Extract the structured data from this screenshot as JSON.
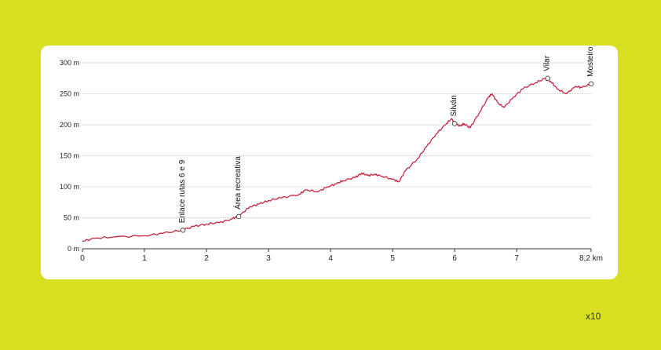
{
  "chart_data": {
    "type": "line",
    "title": "",
    "xlabel": "",
    "ylabel": "",
    "xlim": [
      0,
      8.2
    ],
    "ylim": [
      0,
      300
    ],
    "y_ticks": [
      {
        "value": 0,
        "label": "0 m"
      },
      {
        "value": 50,
        "label": "50 m"
      },
      {
        "value": 100,
        "label": "100 m"
      },
      {
        "value": 150,
        "label": "150 m"
      },
      {
        "value": 200,
        "label": "200 m"
      },
      {
        "value": 250,
        "label": "250 m"
      },
      {
        "value": 300,
        "label": "300 m"
      }
    ],
    "x_ticks": [
      {
        "value": 0,
        "label": "0"
      },
      {
        "value": 1,
        "label": "1"
      },
      {
        "value": 2,
        "label": "2"
      },
      {
        "value": 3,
        "label": "3"
      },
      {
        "value": 4,
        "label": "4"
      },
      {
        "value": 5,
        "label": "5"
      },
      {
        "value": 6,
        "label": "6"
      },
      {
        "value": 7,
        "label": "7"
      },
      {
        "value": 8.2,
        "label": "8,2 km"
      }
    ],
    "grid": "horizontal-dotted",
    "line_color": "#c8243f",
    "series": [
      {
        "x": [
          0,
          0.2,
          0.5,
          1.0,
          1.3,
          1.6,
          1.8,
          2.0,
          2.2,
          2.4,
          2.5,
          2.55,
          2.7,
          2.85,
          3.0,
          3.2,
          3.5,
          3.6,
          3.8,
          3.95,
          4.1,
          4.2,
          4.4,
          4.5,
          4.6,
          4.7,
          4.8,
          5.0,
          5.1,
          5.2,
          5.4,
          5.55,
          5.7,
          5.85,
          5.95,
          6.0,
          6.1,
          6.15,
          6.25,
          6.4,
          6.55,
          6.6,
          6.7,
          6.8,
          6.95,
          7.1,
          7.3,
          7.45,
          7.55,
          7.65,
          7.8,
          7.95,
          8.05,
          8.2
        ],
        "y": [
          12,
          17,
          19,
          21,
          25,
          30,
          36,
          40,
          42,
          48,
          52,
          55,
          68,
          72,
          78,
          82,
          88,
          95,
          92,
          100,
          105,
          110,
          115,
          122,
          118,
          120,
          118,
          112,
          108,
          125,
          145,
          165,
          185,
          200,
          210,
          202,
          198,
          202,
          195,
          220,
          245,
          250,
          235,
          228,
          245,
          258,
          268,
          274,
          270,
          258,
          250,
          262,
          260,
          266
        ]
      }
    ],
    "waypoints": [
      {
        "x": 1.62,
        "y": 30,
        "label": "Enlace rutas 6 e 9"
      },
      {
        "x": 2.52,
        "y": 52,
        "label": "Área recreativa"
      },
      {
        "x": 6.0,
        "y": 202,
        "label": "Silván"
      },
      {
        "x": 7.5,
        "y": 275,
        "label": "Vilar"
      },
      {
        "x": 8.2,
        "y": 266,
        "label": "Mosteiro da Armenteira"
      }
    ]
  },
  "scale_label": "x10"
}
